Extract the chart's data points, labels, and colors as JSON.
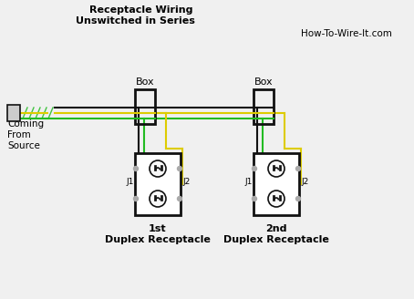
{
  "title1": "Receptacle Wiring",
  "title2": "Unswitched in Series",
  "watermark": "How-To-Wire-It.com",
  "bg_color": "#f0f0f0",
  "box1_label": "Box",
  "box2_label": "Box",
  "label_coming": "Coming\nFrom\nSource",
  "label_1st": "1st\nDuplex Receptacle",
  "label_2nd": "2nd\nDuplex Receptacle",
  "label_j1_1": "J1",
  "label_j2_1": "J2",
  "label_j1_2": "J1",
  "label_j2_2": "J2",
  "wire_black": "#111111",
  "wire_green": "#22bb22",
  "wire_yellow": "#ddcc00",
  "box_color": "#111111"
}
